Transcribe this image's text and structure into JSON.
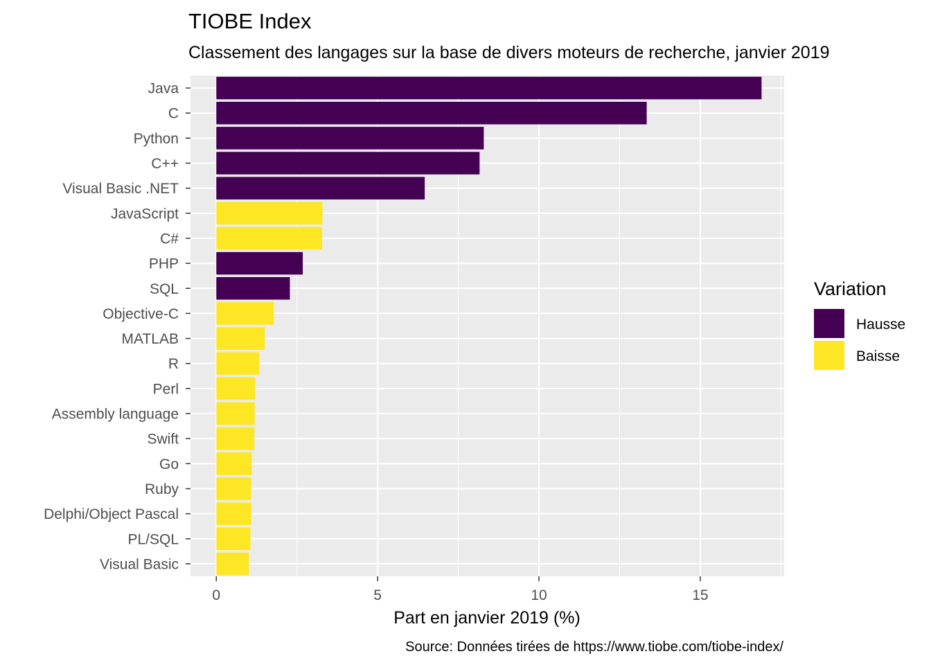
{
  "chart_data": {
    "type": "bar",
    "orientation": "horizontal",
    "title": "TIOBE Index",
    "subtitle": "Classement des langages sur la base de divers moteurs de recherche, janvier 2019",
    "xlabel": "Part en janvier 2019 (%)",
    "ylabel": "",
    "caption": "Source: Données tirées de https://www.tiobe.com/tiobe-index/",
    "xlim": [
      -0.8,
      17.6
    ],
    "xticks": [
      0,
      5,
      10,
      15
    ],
    "grid": true,
    "legend": {
      "title": "Variation",
      "position": "right",
      "entries": [
        {
          "label": "Hausse",
          "color": "#440154"
        },
        {
          "label": "Baisse",
          "color": "#FDE725"
        }
      ]
    },
    "categories": [
      "Java",
      "C",
      "Python",
      "C++",
      "Visual Basic .NET",
      "JavaScript",
      "C#",
      "PHP",
      "SQL",
      "Objective-C",
      "MATLAB",
      "R",
      "Perl",
      "Assembly language",
      "Swift",
      "Go",
      "Ruby",
      "Delphi/Object Pascal",
      "PL/SQL",
      "Visual Basic"
    ],
    "values": [
      16.9,
      13.34,
      8.29,
      8.16,
      6.46,
      3.29,
      3.28,
      2.68,
      2.28,
      1.78,
      1.5,
      1.33,
      1.2,
      1.19,
      1.18,
      1.1,
      1.08,
      1.08,
      1.06,
      1.01
    ],
    "variation": [
      "Hausse",
      "Hausse",
      "Hausse",
      "Hausse",
      "Hausse",
      "Baisse",
      "Baisse",
      "Hausse",
      "Hausse",
      "Baisse",
      "Baisse",
      "Baisse",
      "Baisse",
      "Baisse",
      "Baisse",
      "Baisse",
      "Baisse",
      "Baisse",
      "Baisse",
      "Baisse"
    ]
  }
}
